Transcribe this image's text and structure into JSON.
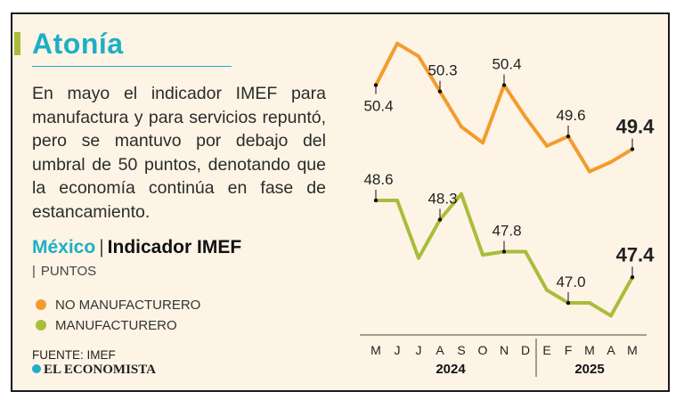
{
  "header": {
    "title": "Atonía",
    "description": "En mayo el indicador IMEF para manufactura y para servicios repuntó, pero se mantuvo por debajo del umbral de 50 puntos, denotando que la economía continúa en fase de estancamiento."
  },
  "subtitle": {
    "country": "México",
    "separator": "|",
    "name": "Indicador IMEF"
  },
  "units": {
    "pipe": "|",
    "label": "PUNTOS"
  },
  "legend": [
    {
      "label": "NO MANUFACTURERO",
      "color": "#f39c2d"
    },
    {
      "label": "MANUFACTURERO",
      "color": "#a9bd3a"
    }
  ],
  "footer": {
    "source": "FUENTE: IMEF",
    "publisher": "EL ECONOMISTA"
  },
  "chart_data": {
    "type": "line",
    "categories": [
      "M",
      "J",
      "J",
      "A",
      "S",
      "O",
      "N",
      "D",
      "E",
      "F",
      "M",
      "A",
      "M"
    ],
    "year_groups": [
      {
        "label": "2024",
        "from": 0,
        "to": 7
      },
      {
        "label": "2025",
        "from": 8,
        "to": 12
      }
    ],
    "ylim": [
      46.75,
      51.2
    ],
    "series": [
      {
        "name": "NO MANUFACTURERO",
        "color": "#f39c2d",
        "values": [
          50.4,
          51.05,
          50.85,
          50.3,
          49.75,
          49.5,
          50.4,
          49.9,
          49.45,
          49.6,
          49.05,
          49.2,
          49.4
        ],
        "labels": [
          {
            "index": 0,
            "text": "50.4",
            "position": "below",
            "bold": false
          },
          {
            "index": 3,
            "text": "50.3",
            "position": "above",
            "bold": false
          },
          {
            "index": 6,
            "text": "50.4",
            "position": "above",
            "bold": false
          },
          {
            "index": 9,
            "text": "49.6",
            "position": "above",
            "bold": false
          },
          {
            "index": 12,
            "text": "49.4",
            "position": "above",
            "bold": true
          }
        ]
      },
      {
        "name": "MANUFACTURERO",
        "color": "#a9bd3a",
        "values": [
          48.6,
          48.6,
          47.7,
          48.3,
          48.7,
          47.75,
          47.8,
          47.8,
          47.2,
          47.0,
          47.0,
          46.8,
          47.4
        ],
        "labels": [
          {
            "index": 0,
            "text": "48.6",
            "position": "above",
            "bold": false
          },
          {
            "index": 3,
            "text": "48.3",
            "position": "above",
            "bold": false
          },
          {
            "index": 6,
            "text": "47.8",
            "position": "above",
            "bold": false
          },
          {
            "index": 9,
            "text": "47.0",
            "position": "above",
            "bold": false
          },
          {
            "index": 12,
            "text": "47.4",
            "position": "above",
            "bold": true
          }
        ]
      }
    ]
  }
}
